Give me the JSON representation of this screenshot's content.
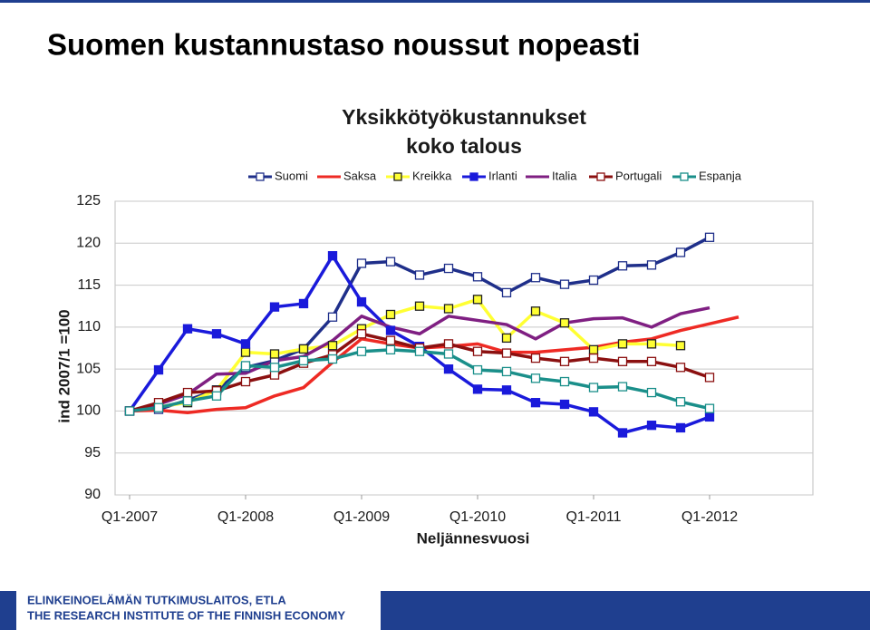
{
  "slide_title": "Suomen kustannustaso noussut nopeasti",
  "footer": {
    "line1": "ELINKEINOELÄMÄN TUTKIMUSLAITOS, ETLA",
    "line2": "THE RESEARCH INSTITUTE OF THE FINNISH ECONOMY"
  },
  "chart_data": {
    "type": "line",
    "title": "Yksikkötyökustannukset",
    "subtitle": "koko talous",
    "y_label": "ind 2007/1 =100",
    "x_label": "Neljännesvuosi",
    "categories": [
      "Q1-2007",
      null,
      null,
      null,
      "Q1-2008",
      null,
      null,
      null,
      "Q1-2009",
      null,
      null,
      null,
      "Q1-2010",
      null,
      null,
      null,
      "Q1-2011",
      null,
      null,
      null,
      "Q1-2012",
      null
    ],
    "ylim": [
      90,
      125
    ],
    "yticks": [
      90,
      95,
      100,
      105,
      110,
      115,
      120,
      125
    ],
    "grid": true,
    "legend": "top",
    "series": [
      {
        "name": "Suomi",
        "color": "#1f2f8a",
        "marker": "square-open",
        "values": [
          100,
          100.2,
          101.3,
          102.5,
          105.2,
          106,
          107.4,
          111.2,
          117.6,
          117.8,
          116.2,
          117,
          116,
          114.1,
          115.9,
          115.1,
          115.6,
          117.3,
          117.4,
          118.9,
          120.7,
          null
        ]
      },
      {
        "name": "Saksa",
        "color": "#ee2a24",
        "marker": "none",
        "values": [
          100,
          100.1,
          99.8,
          100.2,
          100.4,
          101.8,
          102.8,
          105.8,
          108.6,
          108,
          107.5,
          107.7,
          108,
          107,
          107,
          107.3,
          107.6,
          108.2,
          108.6,
          109.6,
          110.4,
          111.2
        ]
      },
      {
        "name": "Kreikka",
        "color": "#ffff33",
        "marker": "square-filled",
        "values": [
          100,
          100.5,
          101,
          102.5,
          107,
          106.8,
          107.4,
          107.8,
          109.8,
          111.5,
          112.5,
          112.2,
          113.3,
          108.7,
          111.9,
          110.5,
          107.3,
          108,
          108,
          107.8,
          null,
          null
        ]
      },
      {
        "name": "Irlanti",
        "color": "#1a1adb",
        "marker": "square-solid",
        "values": [
          100,
          104.9,
          109.8,
          109.2,
          108,
          112.4,
          112.8,
          118.5,
          113,
          109.6,
          107.7,
          105,
          102.6,
          102.5,
          101,
          100.8,
          99.9,
          97.4,
          98.3,
          98,
          99.3,
          null
        ]
      },
      {
        "name": "Italia",
        "color": "#7f1f82",
        "marker": "none",
        "values": [
          100,
          100.8,
          102,
          104.4,
          104.5,
          106,
          106.5,
          108.4,
          111.3,
          110,
          109.2,
          111.3,
          110.8,
          110.3,
          108.6,
          110.5,
          111,
          111.1,
          110,
          111.6,
          112.3,
          null
        ]
      },
      {
        "name": "Portugali",
        "color": "#8b1010",
        "marker": "square-open",
        "values": [
          100,
          101,
          102.2,
          102.4,
          103.5,
          104.3,
          105.7,
          106.7,
          109.2,
          108.4,
          107.5,
          108,
          107.1,
          106.9,
          106.3,
          105.9,
          106.3,
          105.9,
          105.9,
          105.2,
          104,
          null
        ]
      },
      {
        "name": "Espanja",
        "color": "#1a8f8a",
        "marker": "square-open",
        "values": [
          100,
          100.4,
          101.2,
          101.8,
          105.4,
          105.2,
          106,
          106.2,
          107.1,
          107.3,
          107.1,
          106.8,
          104.9,
          104.7,
          103.9,
          103.5,
          102.8,
          102.9,
          102.2,
          101.1,
          100.3,
          null
        ]
      }
    ]
  }
}
